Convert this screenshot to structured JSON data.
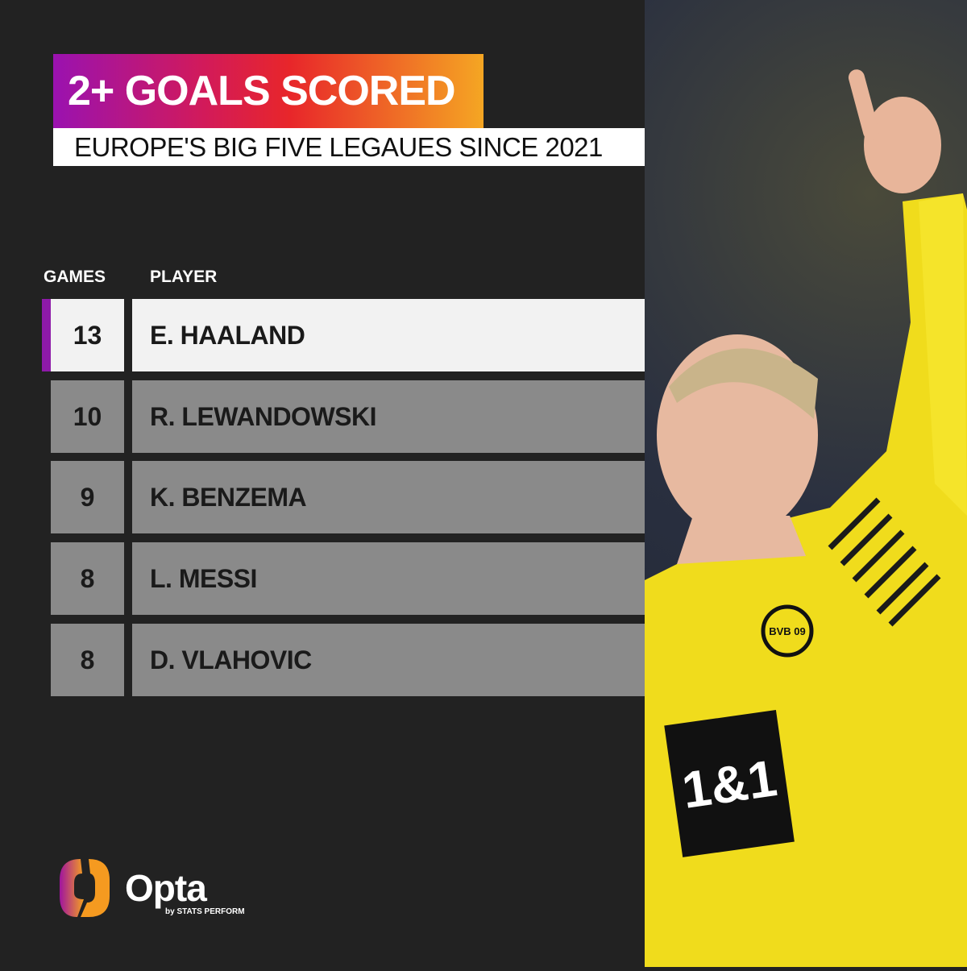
{
  "header": {
    "title": "2+ GOALS SCORED",
    "subtitle": "EUROPE'S  BIG FIVE LEGAUES SINCE 2021"
  },
  "table": {
    "columns": [
      "GAMES",
      "PLAYER"
    ],
    "rows": [
      {
        "games": "13",
        "player": "E. HAALAND"
      },
      {
        "games": "10",
        "player": "R. LEWANDOWSKI"
      },
      {
        "games": "9",
        "player": "K. BENZEMA"
      },
      {
        "games": "8",
        "player": "L. MESSI"
      },
      {
        "games": "8",
        "player": "D. VLAHOVIC"
      }
    ]
  },
  "branding": {
    "name": "Opta",
    "byline": "by STATS PERFORM",
    "sponsor": "1&1",
    "club": "BVB 09"
  },
  "colors": {
    "accent": "#8e1aa8",
    "highlight_row": "#f2f2f2",
    "row": "#8a8a8a",
    "background": "#222222",
    "jersey": "#f3e21a"
  }
}
